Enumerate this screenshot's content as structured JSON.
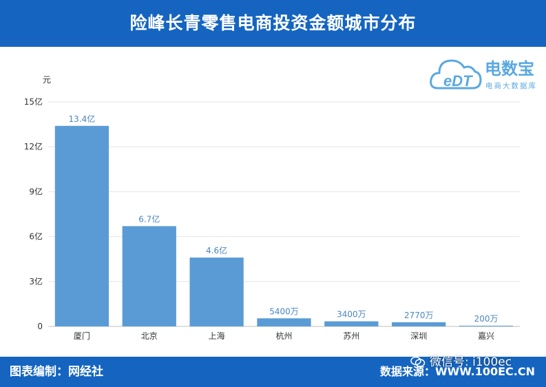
{
  "header": {
    "title": "险峰长青零售电商投资金额城市分布"
  },
  "logo": {
    "mark": "eDT",
    "name": "电数宝",
    "tagline": "电商大数据库"
  },
  "chart_data": {
    "type": "bar",
    "title": "险峰长青零售电商投资金额城市分布",
    "ylabel": "元",
    "xlabel": "",
    "categories": [
      "厦门",
      "北京",
      "上海",
      "杭州",
      "苏州",
      "深圳",
      "嘉兴"
    ],
    "values": [
      1340000000,
      670000000,
      460000000,
      54000000,
      34000000,
      27700000,
      2000000
    ],
    "data_labels": [
      "13.4亿",
      "6.7亿",
      "4.6亿",
      "5400万",
      "3400万",
      "2770万",
      "200万"
    ],
    "ylim": [
      0,
      1500000000
    ],
    "yticks": [
      0,
      300000000,
      600000000,
      900000000,
      1200000000,
      1500000000
    ],
    "ytick_labels": [
      "0",
      "3亿",
      "6亿",
      "9亿",
      "12亿",
      "15亿"
    ],
    "grid": true,
    "colors": {
      "bar": "#5b9bd5",
      "label": "#4a86c5",
      "grid": "#e6e6e6",
      "axis": "#bfbfbf",
      "tick": "#333333"
    }
  },
  "footer": {
    "credit": "图表编制：网经社",
    "source": "数据来源：WWW.100EC.CN",
    "wechat": "微信号: i100ec"
  },
  "colors": {
    "brand": "#1565c0",
    "logo": "#5aa8e0"
  }
}
